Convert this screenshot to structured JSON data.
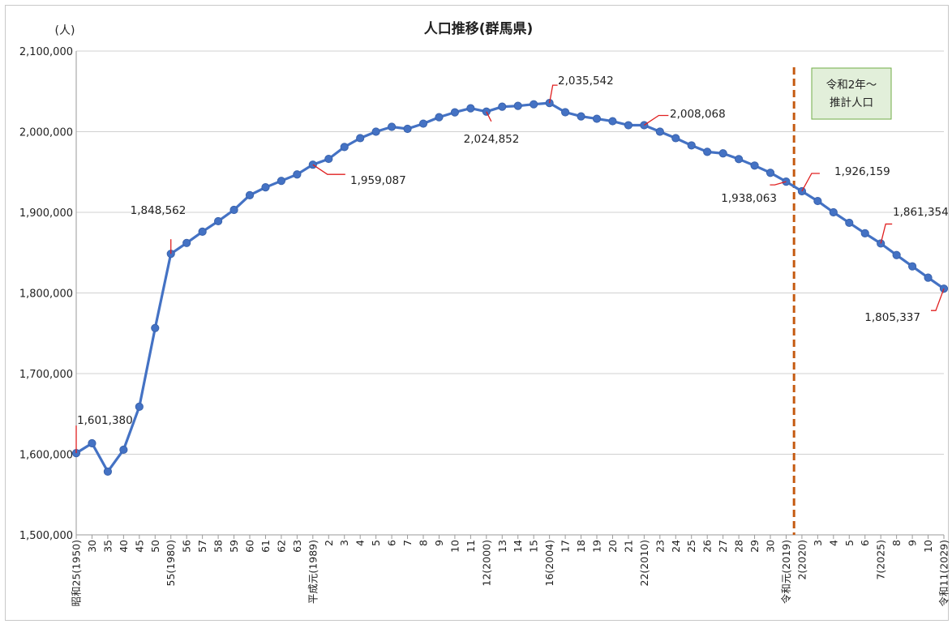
{
  "chart_data": {
    "type": "line",
    "title": "人口推移(群馬県)",
    "yunit": "(人)",
    "ylim": [
      1500000,
      2100000
    ],
    "yticks": [
      {
        "value": 1500000,
        "label": "1,500,000"
      },
      {
        "value": 1600000,
        "label": "1,600,000"
      },
      {
        "value": 1700000,
        "label": "1,700,000"
      },
      {
        "value": 1800000,
        "label": "1,800,000"
      },
      {
        "value": 1900000,
        "label": "1,900,000"
      },
      {
        "value": 2000000,
        "label": "2,000,000"
      },
      {
        "value": 2100000,
        "label": "2,100,000"
      }
    ],
    "grid": true,
    "categories": [
      "昭和25(1950)",
      "30",
      "35",
      "40",
      "45",
      "50",
      "55(1980)",
      "56",
      "57",
      "58",
      "59",
      "60",
      "61",
      "62",
      "63",
      "平成元(1989)",
      "2",
      "3",
      "4",
      "5",
      "6",
      "7",
      "8",
      "9",
      "10",
      "11",
      "12(2000)",
      "13",
      "14",
      "15",
      "16(2004)",
      "17",
      "18",
      "19",
      "20",
      "21",
      "22(2010)",
      "23",
      "24",
      "25",
      "26",
      "27",
      "28",
      "29",
      "30",
      "令和元(2019)",
      "2(2020)",
      "3",
      "4",
      "5",
      "6",
      "7(2025)",
      "8",
      "9",
      "10",
      "令和11(2029)"
    ],
    "series": [
      {
        "color": "#4472c4",
        "values": [
          1601380,
          1613549,
          1578476,
          1605584,
          1658909,
          1756480,
          1848562,
          1862000,
          1876000,
          1889000,
          1903000,
          1921259,
          1931000,
          1939000,
          1947000,
          1959087,
          1966265,
          1981000,
          1992000,
          2000000,
          2006000,
          2003540,
          2010000,
          2018000,
          2024000,
          2029000,
          2024852,
          2031000,
          2032000,
          2034000,
          2035542,
          2024135,
          2019000,
          2016000,
          2013000,
          2008000,
          2008068,
          2000000,
          1992000,
          1983000,
          1975000,
          1973115,
          1966000,
          1958000,
          1949000,
          1938063,
          1926159,
          1914000,
          1900000,
          1887000,
          1874000,
          1861354,
          1847000,
          1833000,
          1819000,
          1805337
        ]
      }
    ],
    "annotations": [
      {
        "index": 0,
        "label": "1,601,380"
      },
      {
        "index": 6,
        "label": "1,848,562"
      },
      {
        "index": 15,
        "label": "1,959,087"
      },
      {
        "index": 26,
        "label": "2,024,852"
      },
      {
        "index": 30,
        "label": "2,035,542"
      },
      {
        "index": 36,
        "label": "2,008,068"
      },
      {
        "index": 45,
        "label": "1,938,063"
      },
      {
        "index": 46,
        "label": "1,926,159"
      },
      {
        "index": 51,
        "label": "1,861,354"
      },
      {
        "index": 55,
        "label": "1,805,337"
      }
    ],
    "projection": {
      "after_index": 45,
      "line_color": "#c55a11",
      "box_lines": [
        "令和2年～",
        "推計人口"
      ],
      "box_fill": "#e2efda",
      "box_border": "#70ad47"
    }
  }
}
